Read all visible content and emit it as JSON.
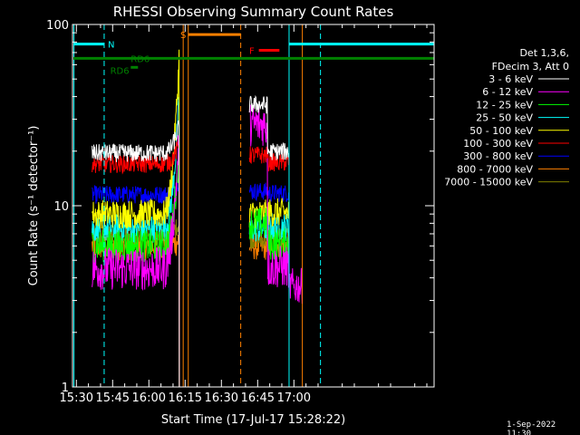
{
  "chart_data": {
    "type": "line",
    "title": "RHESSI Observing Summary Count Rates",
    "xlabel": "Start Time (17-Jul-17 15:28:22)",
    "ylabel": "Count Rate (s⁻¹ detector⁻¹)",
    "yscale": "log",
    "ylim": [
      1,
      100
    ],
    "xlim_min": [
      928.4,
      1078
    ],
    "x_ticks": [
      {
        "min": 930,
        "label": "15:30"
      },
      {
        "min": 945,
        "label": "15:45"
      },
      {
        "min": 960,
        "label": "16:00"
      },
      {
        "min": 975,
        "label": "16:15"
      },
      {
        "min": 990,
        "label": "16:30"
      },
      {
        "min": 1005,
        "label": "16:45"
      },
      {
        "min": 1020,
        "label": "17:00"
      }
    ],
    "y_ticks": [
      {
        "value": 1,
        "label": "1"
      },
      {
        "value": 10,
        "label": "10"
      },
      {
        "value": 100,
        "label": "100"
      }
    ],
    "legend_header": [
      "Det 1,3,6,",
      "FDecim 3, Att 0"
    ],
    "legend_placement": "right",
    "series": [
      {
        "name": "3 - 6 keV",
        "color": "#ffffff",
        "b1": 19.5,
        "b2": 36,
        "peak": 28,
        "noise": 0.05
      },
      {
        "name": "6 - 12 keV",
        "color": "#ff00ff",
        "b1": 4.5,
        "b2": 28,
        "peak": 25,
        "noise": 0.12
      },
      {
        "name": "12 - 25 keV",
        "color": "#00ff00",
        "b1": 6.0,
        "b2": 8.0,
        "peak": 20,
        "noise": 0.09
      },
      {
        "name": "25 - 50 keV",
        "color": "#00ffff",
        "b1": 7.5,
        "b2": 7.5,
        "peak": 40,
        "noise": 0.08
      },
      {
        "name": "50 - 100 keV",
        "color": "#ffff00",
        "b1": 9.0,
        "b2": 9.0,
        "peak": 70,
        "noise": 0.08
      },
      {
        "name": "100 - 300 keV",
        "color": "#ff0000",
        "b1": 17,
        "b2": 19,
        "peak": 22,
        "noise": 0.05
      },
      {
        "name": "300 - 800 keV",
        "color": "#0000ff",
        "b1": 11.5,
        "b2": 12,
        "peak": 14,
        "noise": 0.05
      },
      {
        "name": "800 - 7000 keV",
        "color": "#ff8000",
        "b1": 6.0,
        "b2": 6.0,
        "peak": 6.5,
        "noise": 0.08
      },
      {
        "name": "7000 - 15000 keV",
        "color": "#808000",
        "b1": 7.0,
        "b2": 6.5,
        "peak": 8,
        "noise": 0.05
      }
    ],
    "segments": [
      [
        936.5,
        1012
      ],
      [
        1001.5,
        1024
      ]
    ],
    "segment_min": [
      [
        936.5,
        972.5
      ],
      [
        1001.5,
        1018
      ]
    ],
    "flags": [
      {
        "label": "N",
        "color": "#00ffff",
        "y": 78,
        "start": 928.8,
        "end": 941.5,
        "label_at": 943
      },
      {
        "label": "RD6",
        "color": "#008000",
        "y": 65,
        "start": 928.8,
        "end": 1078,
        "label_at": 952.5,
        "label_y": 65
      },
      {
        "label": "RD6",
        "color": "#008000",
        "y": 58,
        "start": 952.5,
        "end": 955.5,
        "label_at": 944,
        "label_y": 56
      },
      {
        "label": "S",
        "color": "#ff8000",
        "y": 88,
        "start": 976.3,
        "end": 998,
        "label_at": 973
      },
      {
        "label": "F",
        "color": "#ff0000",
        "y": 72,
        "start": 1005.5,
        "end": 1014,
        "label_at": 1001.5
      },
      {
        "label": "",
        "color": "#00ffff",
        "y": 78,
        "start": 1018,
        "end": 1078,
        "label_at": 0
      }
    ],
    "vlines": [
      {
        "min": 929.0,
        "color": "#00ffff",
        "dash": false
      },
      {
        "min": 941.5,
        "color": "#00ffff",
        "dash": true
      },
      {
        "min": 974.2,
        "color": "#ff8000",
        "dash": false
      },
      {
        "min": 976.3,
        "color": "#ff8000",
        "dash": false
      },
      {
        "min": 998.0,
        "color": "#ff8000",
        "dash": true
      },
      {
        "min": 1018.0,
        "color": "#00ffff",
        "dash": false
      },
      {
        "min": 1023.5,
        "color": "#ff8000",
        "dash": false
      },
      {
        "min": 1031.0,
        "color": "#00ffff",
        "dash": true
      }
    ]
  },
  "footer_date": "1-Sep-2022 11:30"
}
